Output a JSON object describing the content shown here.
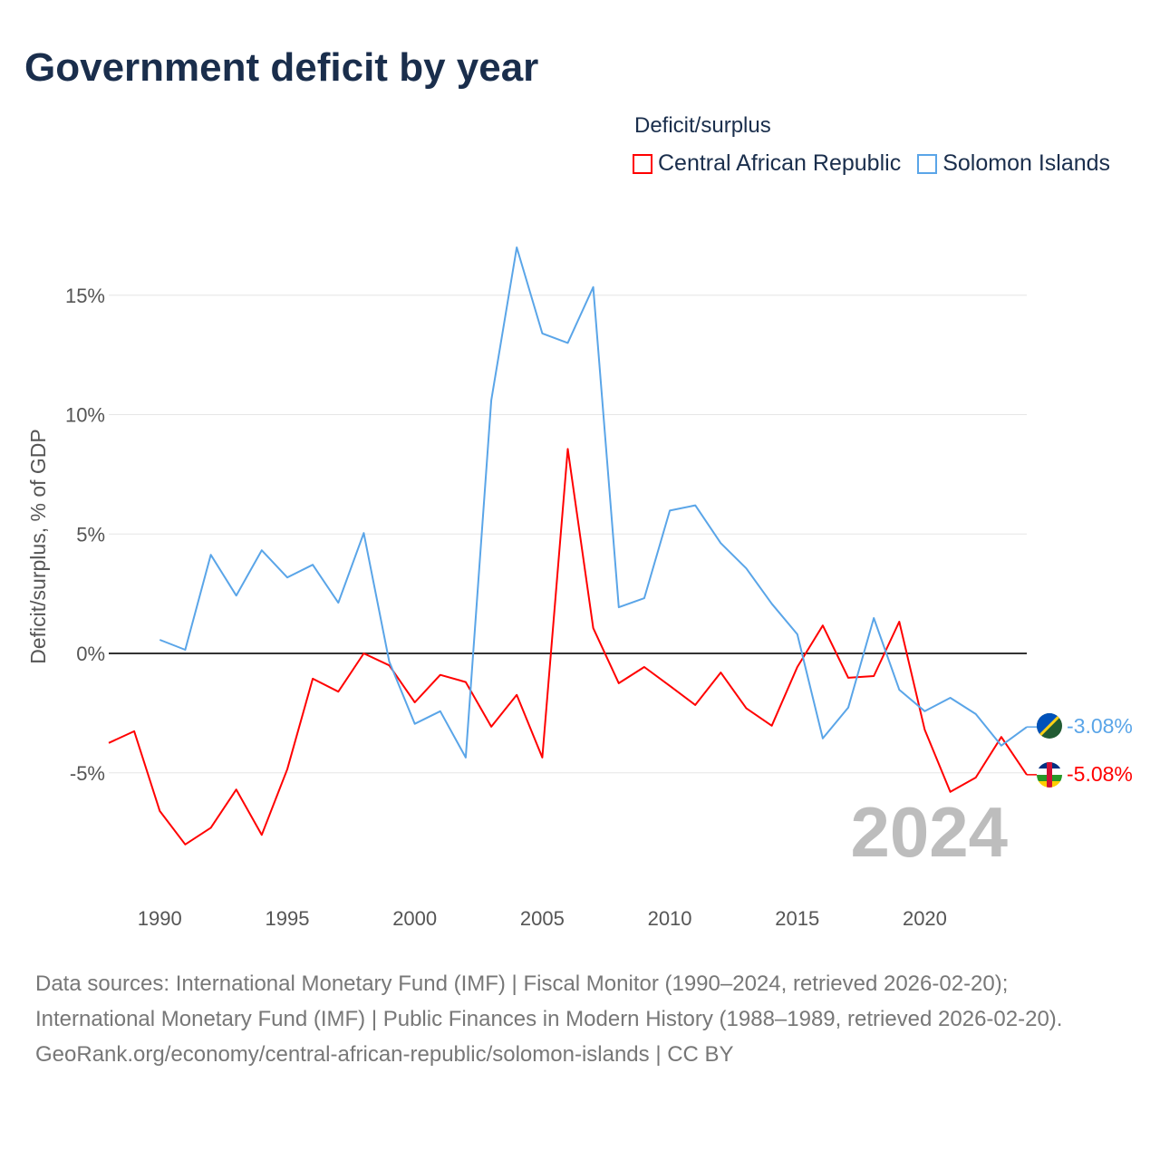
{
  "title": "Government deficit by year",
  "legend": {
    "title": "Deficit/surplus",
    "items": [
      "Central African Republic",
      "Solomon Islands"
    ]
  },
  "year_label": "2024",
  "end_labels": {
    "car": "-5.08%",
    "sol": "-3.08%"
  },
  "footer": {
    "sources": "Data sources: International Monetary Fund (IMF) | Fiscal Monitor (1990–2024, retrieved 2026-02-20); International Monetary Fund (IMF) | Public Finances in Modern History (1988–1989, retrieved 2026-02-20).",
    "credit": "GeoRank.org/economy/central-african-republic/solomon-islands | CC BY"
  },
  "chart_data": {
    "type": "line",
    "title": "Government deficit by year",
    "xlabel": "",
    "ylabel": "Deficit/surplus, % of GDP",
    "xlim": [
      1988,
      2024
    ],
    "ylim": [
      -9.7,
      17.5
    ],
    "xticks": [
      1990,
      1995,
      2000,
      2005,
      2010,
      2015,
      2020
    ],
    "xtick_labels": [
      "1990",
      "1995",
      "2000",
      "2005",
      "2010",
      "2015",
      "2020"
    ],
    "yticks": [
      -5,
      0,
      5,
      10,
      15
    ],
    "ytick_labels": [
      "-5%",
      "0%",
      "5%",
      "10%",
      "15%"
    ],
    "grid": true,
    "legend_position": "top-right",
    "series": [
      {
        "name": "Central African Republic",
        "color": "#ff0000",
        "start_year": 1988,
        "values": [
          -3.75,
          -3.26,
          -6.6,
          -8.0,
          -7.3,
          -5.7,
          -7.6,
          -4.85,
          -1.06,
          -1.6,
          0.0,
          -0.5,
          -2.05,
          -0.9,
          -1.2,
          -3.07,
          -1.74,
          -4.36,
          8.56,
          1.06,
          -1.25,
          -0.57,
          -1.36,
          -2.16,
          -0.8,
          -2.3,
          -3.03,
          -0.57,
          1.17,
          -1.02,
          -0.95,
          1.33,
          -3.2,
          -5.8,
          -5.2,
          -3.5,
          -5.08
        ]
      },
      {
        "name": "Solomon Islands",
        "color": "#5aa5e8",
        "start_year": 1990,
        "values": [
          0.57,
          0.15,
          4.13,
          2.42,
          4.32,
          3.18,
          3.71,
          2.12,
          5.04,
          -0.34,
          -2.95,
          -2.42,
          -4.36,
          10.6,
          17.0,
          13.4,
          13.0,
          15.34,
          1.93,
          2.31,
          5.98,
          6.2,
          4.62,
          3.56,
          2.08,
          0.8,
          -3.56,
          -2.27,
          1.48,
          -1.52,
          -2.42,
          -1.86,
          -2.54,
          -3.86,
          -3.08
        ]
      }
    ]
  }
}
